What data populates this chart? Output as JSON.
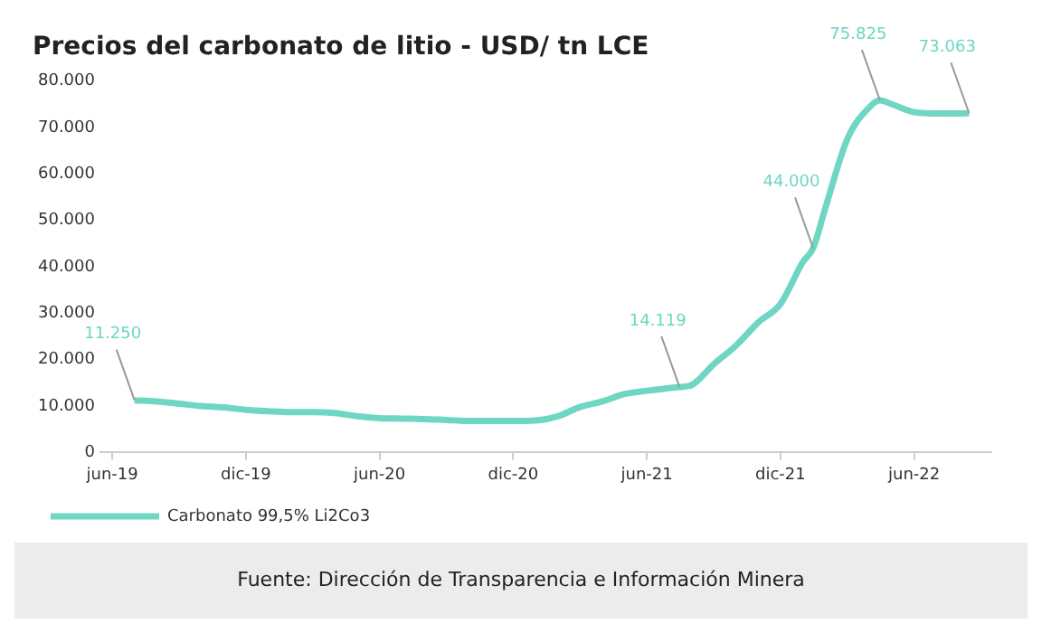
{
  "chart_data": {
    "type": "line",
    "title": "Precios del carbonato de litio - USD/ tn LCE",
    "x": [
      "2019-07",
      "2019-08",
      "2019-09",
      "2019-10",
      "2019-11",
      "2019-12",
      "2020-01",
      "2020-02",
      "2020-03",
      "2020-04",
      "2020-05",
      "2020-06",
      "2020-07",
      "2020-08",
      "2020-09",
      "2020-10",
      "2020-11",
      "2020-12",
      "2021-01",
      "2021-02",
      "2021-03",
      "2021-04",
      "2021-05",
      "2021-06",
      "2021-07-15",
      "2021-08",
      "2021-09",
      "2021-10",
      "2021-11",
      "2021-12",
      "2022-01",
      "2022-01-15",
      "2022-02",
      "2022-03",
      "2022-04",
      "2022-04-15",
      "2022-05",
      "2022-06",
      "2022-07",
      "2022-08",
      "2022-08-15"
    ],
    "series": [
      {
        "name": "Carbonato 99,5% Li2Co3",
        "color": "#6fd6c3",
        "values": [
          11250,
          11000,
          10500,
          10000,
          9700,
          9200,
          8900,
          8700,
          8700,
          8500,
          7800,
          7400,
          7300,
          7200,
          7000,
          6800,
          6800,
          6800,
          6900,
          7800,
          9800,
          11000,
          12600,
          13300,
          14119,
          14500,
          19000,
          23000,
          28000,
          32000,
          41000,
          44000,
          52400,
          67500,
          74400,
          75825,
          75000,
          73300,
          73000,
          73000,
          73063
        ],
        "value_labels": [
          "11.250",
          null,
          null,
          null,
          null,
          null,
          null,
          null,
          null,
          null,
          null,
          null,
          null,
          null,
          null,
          null,
          null,
          null,
          null,
          null,
          null,
          null,
          null,
          null,
          "14.119",
          null,
          null,
          null,
          null,
          null,
          null,
          "44.000",
          null,
          null,
          null,
          "75.825",
          null,
          null,
          null,
          null,
          "73.063"
        ]
      }
    ],
    "xlim": [
      "2019-05-15",
      "2022-09-15"
    ],
    "xticks": [
      {
        "value": "2019-06",
        "label": "jun-19"
      },
      {
        "value": "2019-12",
        "label": "dic-19"
      },
      {
        "value": "2020-06",
        "label": "jun-20"
      },
      {
        "value": "2020-12",
        "label": "dic-20"
      },
      {
        "value": "2021-06",
        "label": "jun-21"
      },
      {
        "value": "2021-12",
        "label": "dic-21"
      },
      {
        "value": "2022-06",
        "label": "jun-22"
      }
    ],
    "ylim": [
      0,
      80000
    ],
    "yticks": [
      {
        "value": 0,
        "label": "0"
      },
      {
        "value": 10000,
        "label": "10.000"
      },
      {
        "value": 20000,
        "label": "20.000"
      },
      {
        "value": 30000,
        "label": "30.000"
      },
      {
        "value": 40000,
        "label": "40.000"
      },
      {
        "value": 50000,
        "label": "50.000"
      },
      {
        "value": 60000,
        "label": "60.000"
      },
      {
        "value": 70000,
        "label": "70.000"
      },
      {
        "value": 80000,
        "label": "80.000"
      }
    ],
    "grid": false,
    "legend": "bottom left",
    "marker": "none",
    "line_style": "solid",
    "annotations": [
      "Fuente: Dirección de Transparencia e Información Minera"
    ]
  }
}
